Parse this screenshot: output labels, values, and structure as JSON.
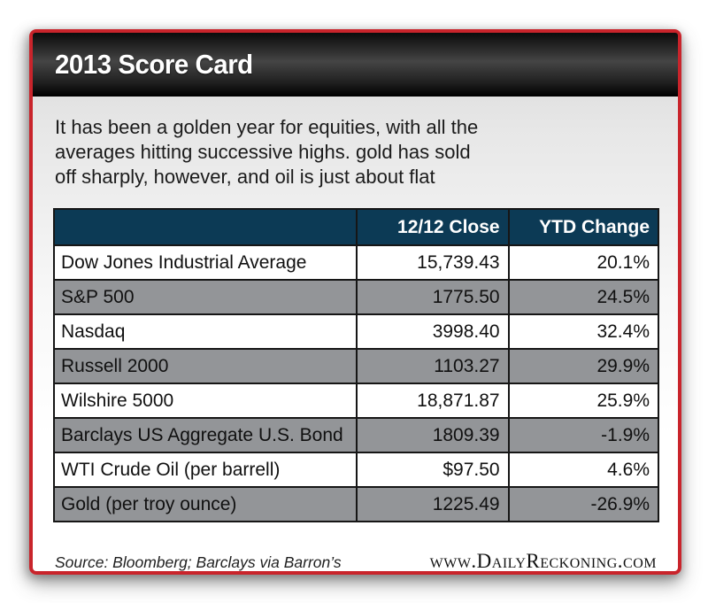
{
  "header": {
    "title": "2013 Score Card"
  },
  "description": {
    "lines": [
      "It has been a golden year for equities, with all the",
      "averages hitting successive highs. gold has sold",
      "off sharply, however, and oil is just about flat"
    ]
  },
  "chart_data": {
    "type": "table",
    "title": "2013 Score Card",
    "columns": [
      "",
      "12/12 Close",
      "YTD Change"
    ],
    "rows": [
      {
        "name": "Dow Jones Industrial Average",
        "close": "15,739.43",
        "ytd": "20.1%"
      },
      {
        "name": "S&P 500",
        "close": "1775.50",
        "ytd": "24.5%"
      },
      {
        "name": "Nasdaq",
        "close": "3998.40",
        "ytd": "32.4%"
      },
      {
        "name": "Russell 2000",
        "close": "1103.27",
        "ytd": "29.9%"
      },
      {
        "name": "Wilshire 5000",
        "close": "18,871.87",
        "ytd": "25.9%"
      },
      {
        "name": "Barclays US Aggregate U.S. Bond",
        "close": "1809.39",
        "ytd": "-1.9%"
      },
      {
        "name": "WTI Crude Oil (per barrell)",
        "close": "$97.50",
        "ytd": "4.6%"
      },
      {
        "name": "Gold (per troy ounce)",
        "close": "1225.49",
        "ytd": "-26.9%"
      }
    ]
  },
  "footer": {
    "source": "Source: Bloomberg; Barclays via Barron’s",
    "website": "www.DailyReckoning.com"
  },
  "colors": {
    "accent_red": "#c9242b",
    "table_header_navy": "#0c3a55",
    "row_gray": "#939598",
    "row_white": "#ffffff",
    "titlebar_black": "#000000"
  }
}
